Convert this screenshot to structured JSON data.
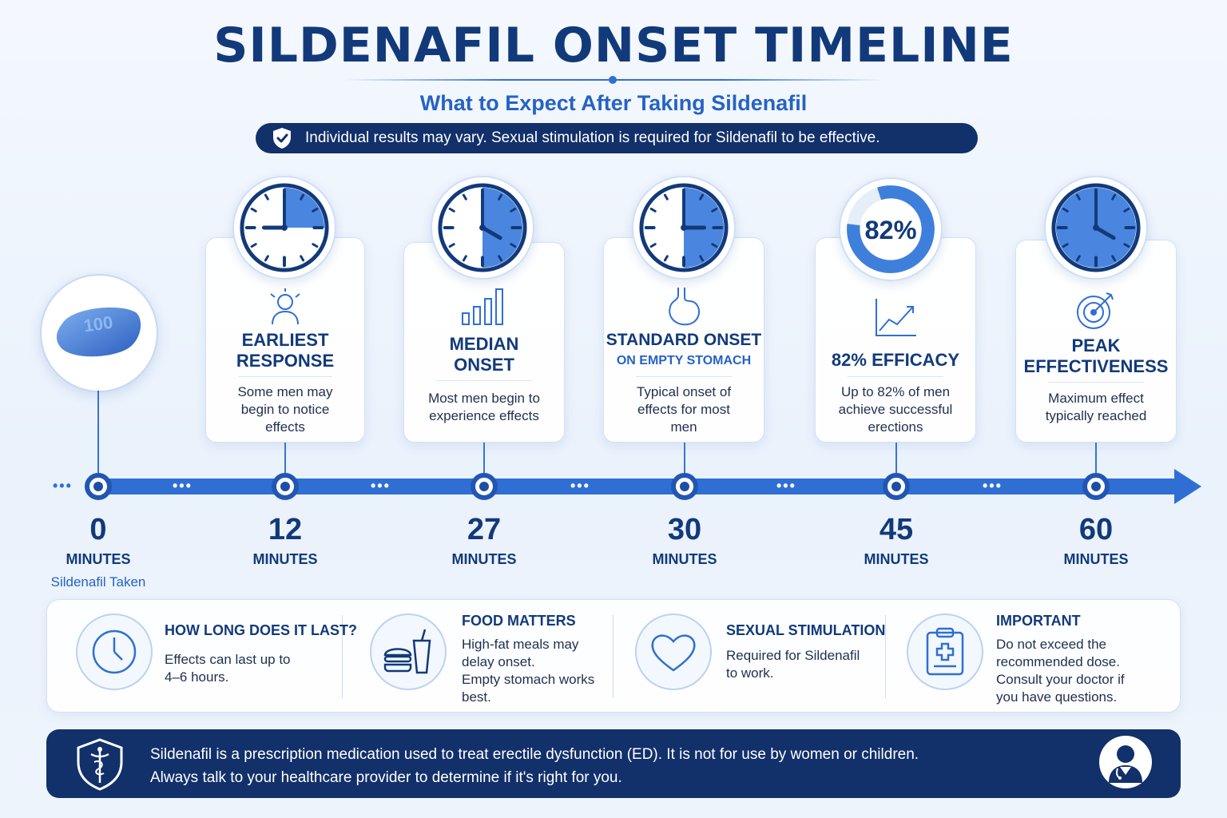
{
  "header": {
    "title": "SILDENAFIL ONSET TIMELINE",
    "subtitle": "What to Expect After Taking Sildenafil",
    "disclaimer": "Individual results may vary. Sexual stimulation is required for Sildenafil to be effective."
  },
  "colors": {
    "navy": "#12306a",
    "accent": "#2f6fd4",
    "text": "#123a7a"
  },
  "pill": {
    "imprint": "100",
    "label": "Sildenafil Taken"
  },
  "stages": [
    {
      "icon": "person-icon",
      "title_line1": "EARLIEST",
      "title_line2": "RESPONSE",
      "subtitle": "",
      "desc_line1": "Some men may",
      "desc_line2": "begin to notice",
      "desc_line3": "effects"
    },
    {
      "icon": "bar-chart-icon",
      "title_line1": "MEDIAN",
      "title_line2": "ONSET",
      "subtitle": "",
      "desc_line1": "Most men begin to",
      "desc_line2": "experience effects",
      "desc_line3": ""
    },
    {
      "icon": "stomach-icon",
      "title_line1": "STANDARD ONSET",
      "title_line2": "",
      "subtitle": "ON EMPTY STOMACH",
      "desc_line1": "Typical onset of",
      "desc_line2": "effects for most",
      "desc_line3": "men"
    },
    {
      "icon": "trend-chart-icon",
      "title_line1": "82% EFFICACY",
      "title_line2": "",
      "subtitle": "",
      "desc_line1": "Up to 82% of men",
      "desc_line2": "achieve successful",
      "desc_line3": "erections"
    },
    {
      "icon": "target-icon",
      "title_line1": "PEAK",
      "title_line2": "EFFECTIVENESS",
      "subtitle": "",
      "desc_line1": "Maximum effect",
      "desc_line2": "typically reached",
      "desc_line3": ""
    }
  ],
  "efficacy_percent": "82%",
  "efficacy_fraction": 0.82,
  "timeline": [
    {
      "value": "0",
      "unit": "MINUTES"
    },
    {
      "value": "12",
      "unit": "MINUTES"
    },
    {
      "value": "27",
      "unit": "MINUTES"
    },
    {
      "value": "30",
      "unit": "MINUTES"
    },
    {
      "value": "45",
      "unit": "MINUTES"
    },
    {
      "value": "60",
      "unit": "MINUTES"
    }
  ],
  "info": [
    {
      "icon": "clock-icon",
      "title": "HOW LONG DOES IT LAST?",
      "line1": "Effects can last up to",
      "line2": "4–6 hours.",
      "line3": "",
      "line4": ""
    },
    {
      "icon": "burger-drink-icon",
      "title": "FOOD MATTERS",
      "line1": "High-fat meals may",
      "line2": "delay onset.",
      "line3": "Empty stomach works",
      "line4": "best."
    },
    {
      "icon": "heart-icon",
      "title": "SEXUAL STIMULATION",
      "line1": "Required for Sildenafil",
      "line2": "to work.",
      "line3": "",
      "line4": ""
    },
    {
      "icon": "clipboard-icon",
      "title": "IMPORTANT",
      "line1": "Do not exceed the",
      "line2": "recommended dose.",
      "line3": "Consult your doctor if",
      "line4": "you have questions."
    }
  ],
  "footer": {
    "line1": "Sildenafil is a prescription medication used to treat erectile dysfunction (ED). It is not for use by women or children.",
    "line2": "Always talk to your healthcare provider to determine if it's right for you."
  }
}
